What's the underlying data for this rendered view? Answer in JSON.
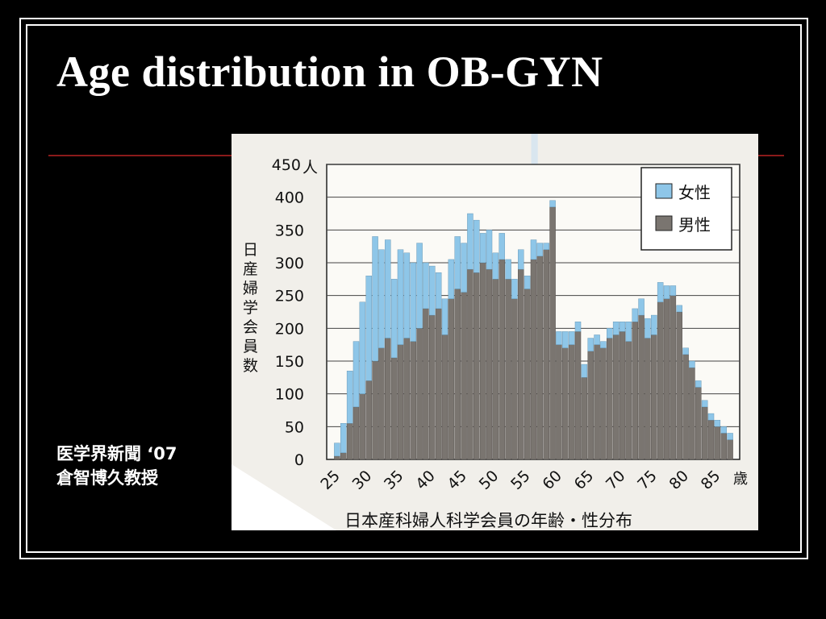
{
  "slide": {
    "title": "Age distribution in OB-GYN",
    "caption_line1": "医学界新聞 ‘07",
    "caption_line2": "倉智博久教授"
  },
  "chart_data": {
    "type": "bar",
    "stacked": true,
    "title": "日本産科婦人科学会員の年齢・性分布",
    "ylabel": "日産婦学会員数",
    "y_unit": "人",
    "x_unit": "歳",
    "ylim": [
      0,
      450
    ],
    "yticks": [
      "0",
      "50",
      "100",
      "150",
      "200",
      "250",
      "300",
      "350",
      "400",
      "450"
    ],
    "xticks": [
      "25",
      "30",
      "35",
      "40",
      "45",
      "50",
      "55",
      "60",
      "65",
      "70",
      "75",
      "80",
      "85"
    ],
    "x_start": 25,
    "x_end": 87,
    "legend_position": "top-right",
    "colors": {
      "female": "#8ec6e8",
      "male": "#7a7570"
    },
    "series": [
      {
        "name": "女性",
        "values": [
          20,
          45,
          80,
          100,
          140,
          160,
          190,
          150,
          150,
          120,
          145,
          130,
          120,
          130,
          70,
          75,
          55,
          55,
          60,
          80,
          75,
          85,
          80,
          45,
          60,
          40,
          40,
          30,
          30,
          30,
          20,
          30,
          20,
          10,
          10,
          20,
          25,
          20,
          15,
          20,
          20,
          15,
          10,
          15,
          20,
          15,
          30,
          20,
          25,
          30,
          30,
          30,
          20,
          15,
          10,
          10,
          10,
          10,
          10,
          10,
          10,
          10,
          10
        ]
      },
      {
        "name": "男性",
        "values": [
          5,
          10,
          55,
          80,
          100,
          120,
          150,
          170,
          185,
          155,
          175,
          185,
          180,
          200,
          230,
          220,
          230,
          190,
          245,
          260,
          255,
          290,
          285,
          300,
          290,
          275,
          305,
          275,
          245,
          290,
          260,
          305,
          310,
          320,
          385,
          175,
          170,
          175,
          195,
          125,
          165,
          175,
          170,
          185,
          190,
          195,
          180,
          210,
          220,
          185,
          190,
          240,
          245,
          250,
          225,
          160,
          140,
          110,
          80,
          60,
          50,
          40,
          30
        ]
      }
    ]
  }
}
